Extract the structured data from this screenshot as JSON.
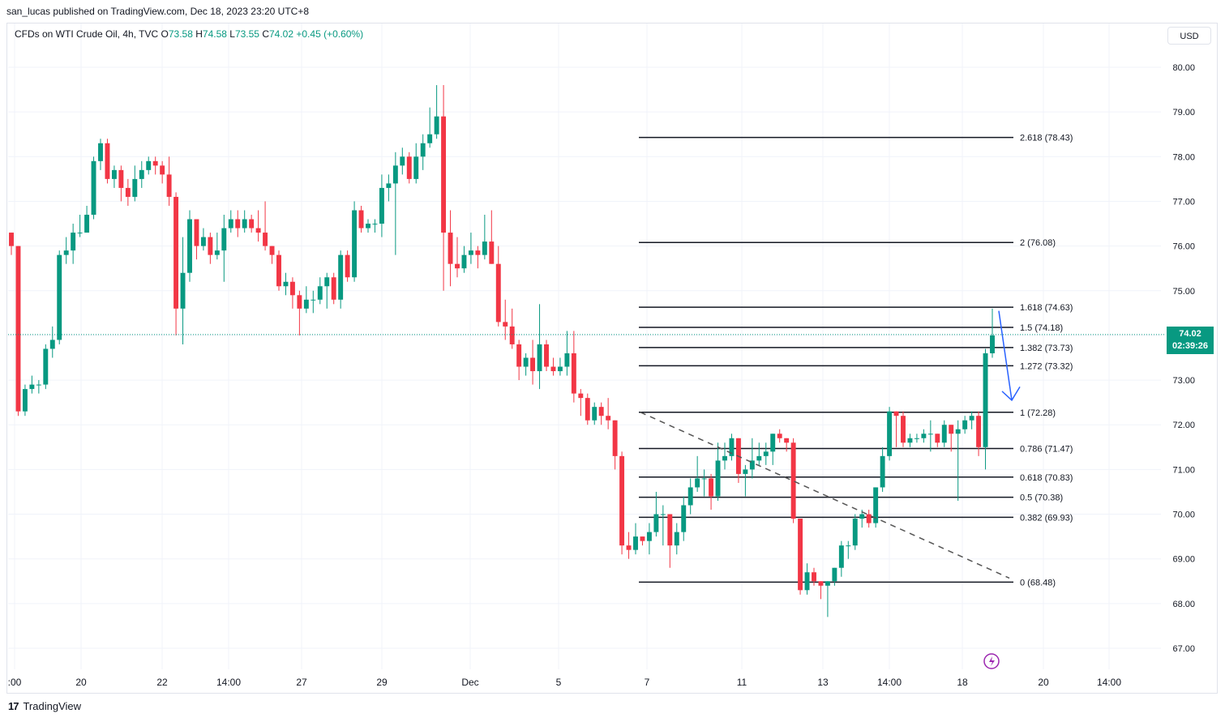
{
  "header": {
    "published": "san_lucas published on TradingView.com, Dec 18, 2023 23:20 UTC+8"
  },
  "legend": {
    "symbol": "CFDs on WTI Crude Oil, 4h, TVC",
    "o_label": "O",
    "o_val": "73.58",
    "h_label": "H",
    "h_val": "74.58",
    "l_label": "L",
    "l_val": "73.55",
    "c_label": "C",
    "c_val": "74.02",
    "change": "+0.45 (+0.60%)"
  },
  "currency": "USD",
  "last_price": {
    "value": "74.02",
    "countdown": "02:39:26"
  },
  "footer": {
    "brand": "TradingView"
  },
  "colors": {
    "up": "#089981",
    "down": "#f23645",
    "fib": "#131722",
    "arrow": "#2962ff",
    "dashed": "#555555",
    "alert": "#9c27b0"
  },
  "chart_data": {
    "type": "candlestick",
    "ylim": [
      66.5,
      80.8
    ],
    "y_ticks": [
      "80.00",
      "79.00",
      "78.00",
      "77.00",
      "76.00",
      "75.00",
      "73.00",
      "72.00",
      "71.00",
      "70.00",
      "69.00",
      "68.00",
      "67.00"
    ],
    "x_ticks": [
      ":00",
      "20",
      "22",
      "14:00",
      "27",
      "29",
      "Dec",
      "5",
      "7",
      "11",
      "13",
      "14:00",
      "18",
      "20",
      "14:00"
    ],
    "fib_levels": [
      {
        "ratio": "2.618",
        "price": 78.43,
        "label": "2.618 (78.43)"
      },
      {
        "ratio": "2",
        "price": 76.08,
        "label": "2 (76.08)"
      },
      {
        "ratio": "1.618",
        "price": 74.63,
        "label": "1.618 (74.63)"
      },
      {
        "ratio": "1.5",
        "price": 74.18,
        "label": "1.5 (74.18)"
      },
      {
        "ratio": "1.382",
        "price": 73.73,
        "label": "1.382 (73.73)"
      },
      {
        "ratio": "1.272",
        "price": 73.32,
        "label": "1.272 (73.32)"
      },
      {
        "ratio": "1",
        "price": 72.28,
        "label": "1 (72.28)"
      },
      {
        "ratio": "0.786",
        "price": 71.47,
        "label": "0.786 (71.47)"
      },
      {
        "ratio": "0.618",
        "price": 70.83,
        "label": "0.618 (70.83)"
      },
      {
        "ratio": "0.5",
        "price": 70.38,
        "label": "0.5 (70.38)"
      },
      {
        "ratio": "0.382",
        "price": 69.93,
        "label": "0.382 (69.93)"
      },
      {
        "ratio": "0",
        "price": 68.48,
        "label": "0 (68.48)"
      }
    ],
    "candles": [
      [
        76.3,
        76.0,
        76.3,
        75.8
      ],
      [
        76.0,
        72.3,
        76.0,
        72.2
      ],
      [
        72.3,
        72.8,
        72.9,
        72.2
      ],
      [
        72.8,
        72.9,
        73.1,
        72.7
      ],
      [
        72.9,
        72.9,
        73.0,
        72.7
      ],
      [
        72.9,
        73.7,
        73.8,
        72.8
      ],
      [
        73.7,
        73.9,
        74.2,
        73.5
      ],
      [
        73.9,
        75.8,
        75.9,
        73.8
      ],
      [
        75.8,
        75.9,
        76.2,
        75.6
      ],
      [
        75.9,
        76.3,
        76.5,
        75.6
      ],
      [
        76.3,
        76.3,
        76.7,
        76.2
      ],
      [
        76.3,
        76.7,
        76.9,
        76.3
      ],
      [
        76.7,
        77.9,
        78.0,
        76.6
      ],
      [
        77.9,
        78.3,
        78.4,
        77.7
      ],
      [
        78.3,
        77.5,
        78.4,
        77.4
      ],
      [
        77.5,
        77.7,
        77.8,
        77.3
      ],
      [
        77.7,
        77.3,
        77.8,
        77.0
      ],
      [
        77.3,
        77.1,
        77.5,
        76.9
      ],
      [
        77.1,
        77.5,
        77.8,
        77.0
      ],
      [
        77.5,
        77.7,
        77.9,
        77.3
      ],
      [
        77.7,
        77.9,
        78.0,
        77.6
      ],
      [
        77.9,
        77.8,
        78.0,
        77.6
      ],
      [
        77.8,
        77.6,
        77.9,
        77.4
      ],
      [
        77.6,
        77.1,
        78.0,
        76.9
      ],
      [
        77.1,
        74.6,
        77.2,
        74.0
      ],
      [
        74.6,
        75.4,
        76.2,
        73.8
      ],
      [
        75.4,
        76.6,
        76.8,
        75.2
      ],
      [
        76.6,
        76.0,
        76.6,
        75.7
      ],
      [
        76.0,
        76.2,
        76.4,
        75.9
      ],
      [
        76.2,
        75.8,
        76.3,
        75.6
      ],
      [
        75.8,
        75.9,
        76.3,
        75.7
      ],
      [
        75.9,
        76.4,
        76.7,
        75.2
      ],
      [
        76.4,
        76.6,
        76.8,
        76.3
      ],
      [
        76.6,
        76.4,
        76.8,
        76.2
      ],
      [
        76.4,
        76.6,
        76.8,
        76.3
      ],
      [
        76.6,
        76.4,
        76.7,
        76.3
      ],
      [
        76.4,
        76.3,
        76.8,
        76.1
      ],
      [
        76.3,
        76.0,
        77.0,
        75.9
      ],
      [
        76.0,
        75.8,
        76.0,
        75.6
      ],
      [
        75.8,
        75.1,
        75.9,
        75.0
      ],
      [
        75.1,
        75.2,
        75.4,
        74.9
      ],
      [
        75.2,
        74.9,
        75.3,
        74.6
      ],
      [
        74.9,
        74.6,
        75.0,
        74.0
      ],
      [
        74.6,
        74.8,
        75.1,
        74.5
      ],
      [
        74.8,
        74.8,
        75.0,
        74.5
      ],
      [
        74.8,
        75.1,
        75.3,
        74.7
      ],
      [
        75.1,
        75.3,
        75.4,
        74.6
      ],
      [
        75.3,
        74.8,
        75.4,
        74.7
      ],
      [
        74.8,
        75.8,
        75.9,
        74.6
      ],
      [
        75.8,
        75.3,
        75.9,
        75.2
      ],
      [
        75.3,
        76.8,
        77.0,
        75.2
      ],
      [
        76.8,
        76.4,
        76.9,
        76.3
      ],
      [
        76.4,
        76.5,
        76.6,
        76.3
      ],
      [
        76.5,
        76.5,
        76.6,
        76.3
      ],
      [
        76.5,
        77.3,
        77.6,
        76.2
      ],
      [
        77.3,
        77.4,
        77.6,
        77.0
      ],
      [
        77.4,
        77.8,
        78.1,
        75.8
      ],
      [
        77.8,
        78.0,
        78.2,
        77.6
      ],
      [
        78.0,
        77.5,
        78.1,
        77.4
      ],
      [
        77.5,
        78.0,
        78.3,
        77.4
      ],
      [
        78.0,
        78.3,
        78.5,
        77.7
      ],
      [
        78.3,
        78.5,
        79.1,
        78.2
      ],
      [
        78.5,
        78.9,
        79.6,
        78.4
      ],
      [
        78.9,
        76.3,
        79.6,
        75.0
      ],
      [
        76.3,
        75.6,
        76.8,
        75.1
      ],
      [
        75.6,
        75.5,
        76.2,
        75.3
      ],
      [
        75.5,
        75.8,
        76.0,
        75.4
      ],
      [
        75.8,
        75.9,
        76.3,
        75.6
      ],
      [
        75.9,
        75.8,
        76.0,
        75.5
      ],
      [
        75.8,
        76.1,
        76.7,
        75.7
      ],
      [
        76.1,
        75.6,
        76.8,
        75.6
      ],
      [
        75.6,
        74.3,
        76.0,
        74.2
      ],
      [
        74.3,
        74.2,
        74.8,
        73.9
      ],
      [
        74.2,
        73.8,
        74.6,
        73.7
      ],
      [
        73.8,
        73.3,
        73.9,
        73.0
      ],
      [
        73.3,
        73.5,
        73.6,
        73.1
      ],
      [
        73.5,
        73.2,
        73.9,
        72.9
      ],
      [
        73.2,
        73.8,
        74.7,
        72.8
      ],
      [
        73.8,
        73.3,
        73.9,
        73.2
      ],
      [
        73.3,
        73.2,
        73.5,
        73.1
      ],
      [
        73.2,
        73.3,
        73.5,
        73.1
      ],
      [
        73.3,
        73.6,
        74.1,
        73.1
      ],
      [
        73.6,
        72.7,
        74.1,
        72.5
      ],
      [
        72.7,
        72.6,
        72.8,
        72.2
      ],
      [
        72.6,
        72.1,
        72.7,
        72.0
      ],
      [
        72.1,
        72.4,
        72.5,
        72.0
      ],
      [
        72.4,
        72.2,
        72.5,
        72.0
      ],
      [
        72.2,
        72.1,
        72.6,
        71.9
      ],
      [
        72.1,
        71.3,
        72.1,
        71.0
      ],
      [
        71.3,
        69.3,
        71.4,
        69.1
      ],
      [
        69.3,
        69.2,
        69.6,
        69.0
      ],
      [
        69.2,
        69.5,
        69.8,
        69.1
      ],
      [
        69.5,
        69.4,
        69.5,
        69.3
      ],
      [
        69.4,
        69.6,
        69.8,
        69.1
      ],
      [
        69.6,
        70.0,
        70.5,
        69.5
      ],
      [
        70.0,
        70.0,
        70.2,
        69.3
      ],
      [
        70.0,
        69.3,
        70.0,
        68.8
      ],
      [
        69.3,
        69.6,
        69.8,
        69.1
      ],
      [
        69.6,
        70.2,
        70.4,
        69.4
      ],
      [
        70.2,
        70.6,
        70.8,
        70.0
      ],
      [
        70.6,
        70.8,
        71.3,
        70.5
      ],
      [
        70.8,
        70.8,
        71.0,
        70.4
      ],
      [
        70.8,
        70.4,
        70.9,
        70.1
      ],
      [
        70.4,
        71.2,
        71.6,
        70.3
      ],
      [
        71.2,
        71.3,
        71.6,
        71.0
      ],
      [
        71.3,
        71.7,
        71.8,
        71.2
      ],
      [
        71.7,
        70.9,
        71.7,
        70.7
      ],
      [
        70.9,
        71.0,
        71.1,
        70.4
      ],
      [
        71.0,
        71.2,
        71.7,
        70.8
      ],
      [
        71.2,
        71.3,
        71.6,
        71.1
      ],
      [
        71.3,
        71.4,
        71.6,
        71.1
      ],
      [
        71.4,
        71.8,
        71.8,
        71.1
      ],
      [
        71.8,
        71.7,
        71.9,
        71.6
      ],
      [
        71.7,
        71.6,
        71.7,
        71.4
      ],
      [
        71.6,
        69.9,
        71.7,
        69.8
      ],
      [
        69.9,
        68.3,
        69.9,
        68.2
      ],
      [
        68.3,
        68.7,
        68.9,
        68.2
      ],
      [
        68.7,
        68.5,
        68.8,
        68.4
      ],
      [
        68.5,
        68.4,
        68.5,
        68.1
      ],
      [
        68.4,
        68.5,
        68.5,
        67.7
      ],
      [
        68.5,
        68.8,
        68.8,
        68.4
      ],
      [
        68.8,
        69.3,
        69.4,
        68.6
      ],
      [
        69.3,
        69.3,
        69.4,
        69.0
      ],
      [
        69.3,
        69.9,
        70.0,
        69.2
      ],
      [
        69.9,
        70.0,
        70.1,
        69.7
      ],
      [
        70.0,
        69.8,
        70.1,
        69.7
      ],
      [
        69.8,
        70.6,
        70.6,
        69.7
      ],
      [
        70.6,
        71.3,
        71.5,
        70.5
      ],
      [
        71.3,
        72.3,
        72.4,
        71.2
      ],
      [
        72.3,
        72.2,
        72.3,
        71.5
      ],
      [
        72.2,
        71.6,
        72.3,
        71.5
      ],
      [
        71.6,
        71.7,
        71.8,
        71.5
      ],
      [
        71.7,
        71.7,
        71.8,
        71.6
      ],
      [
        71.7,
        71.8,
        71.9,
        71.6
      ],
      [
        71.8,
        71.8,
        72.1,
        71.4
      ],
      [
        71.8,
        71.6,
        71.8,
        71.5
      ],
      [
        71.6,
        72.0,
        72.1,
        71.5
      ],
      [
        72.0,
        71.8,
        72.0,
        71.4
      ],
      [
        71.8,
        71.9,
        72.1,
        70.3
      ],
      [
        71.9,
        72.1,
        72.2,
        71.8
      ],
      [
        72.1,
        72.2,
        72.3,
        71.9
      ],
      [
        72.2,
        71.5,
        72.3,
        71.3
      ],
      [
        71.5,
        73.6,
        73.7,
        71.0
      ],
      [
        73.6,
        74.0,
        74.6,
        73.5
      ]
    ]
  }
}
